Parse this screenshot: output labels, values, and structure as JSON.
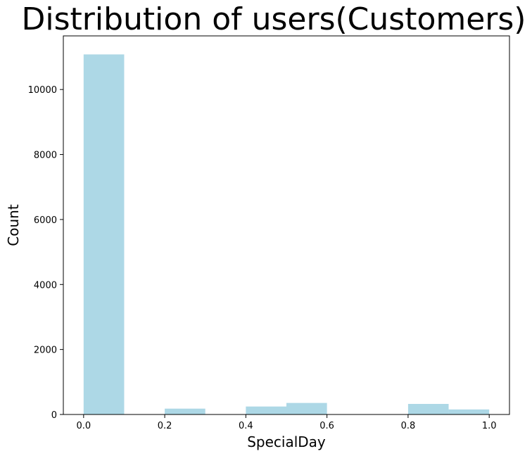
{
  "chart_data": {
    "type": "bar",
    "title": "Distribution of users(Customers)",
    "xlabel": "SpecialDay",
    "ylabel": "Count",
    "xlim": [
      -0.05,
      1.05
    ],
    "ylim": [
      0,
      11650
    ],
    "grid": false,
    "bar_color": "#add8e6",
    "bins": [
      {
        "x0": 0.0,
        "x1": 0.1,
        "value": 11080
      },
      {
        "x0": 0.1,
        "x1": 0.2,
        "value": 0
      },
      {
        "x0": 0.2,
        "x1": 0.3,
        "value": 180
      },
      {
        "x0": 0.3,
        "x1": 0.4,
        "value": 0
      },
      {
        "x0": 0.4,
        "x1": 0.5,
        "value": 245
      },
      {
        "x0": 0.5,
        "x1": 0.6,
        "value": 355
      },
      {
        "x0": 0.6,
        "x1": 0.7,
        "value": 0
      },
      {
        "x0": 0.7,
        "x1": 0.8,
        "value": 0
      },
      {
        "x0": 0.8,
        "x1": 0.9,
        "value": 325
      },
      {
        "x0": 0.9,
        "x1": 1.0,
        "value": 155
      }
    ],
    "xticks": [
      0.0,
      0.2,
      0.4,
      0.6,
      0.8,
      1.0
    ],
    "xtick_labels": [
      "0.0",
      "0.2",
      "0.4",
      "0.6",
      "0.8",
      "1.0"
    ],
    "yticks": [
      0,
      2000,
      4000,
      6000,
      8000,
      10000
    ],
    "ytick_labels": [
      "0",
      "2000",
      "4000",
      "6000",
      "8000",
      "10000"
    ]
  }
}
